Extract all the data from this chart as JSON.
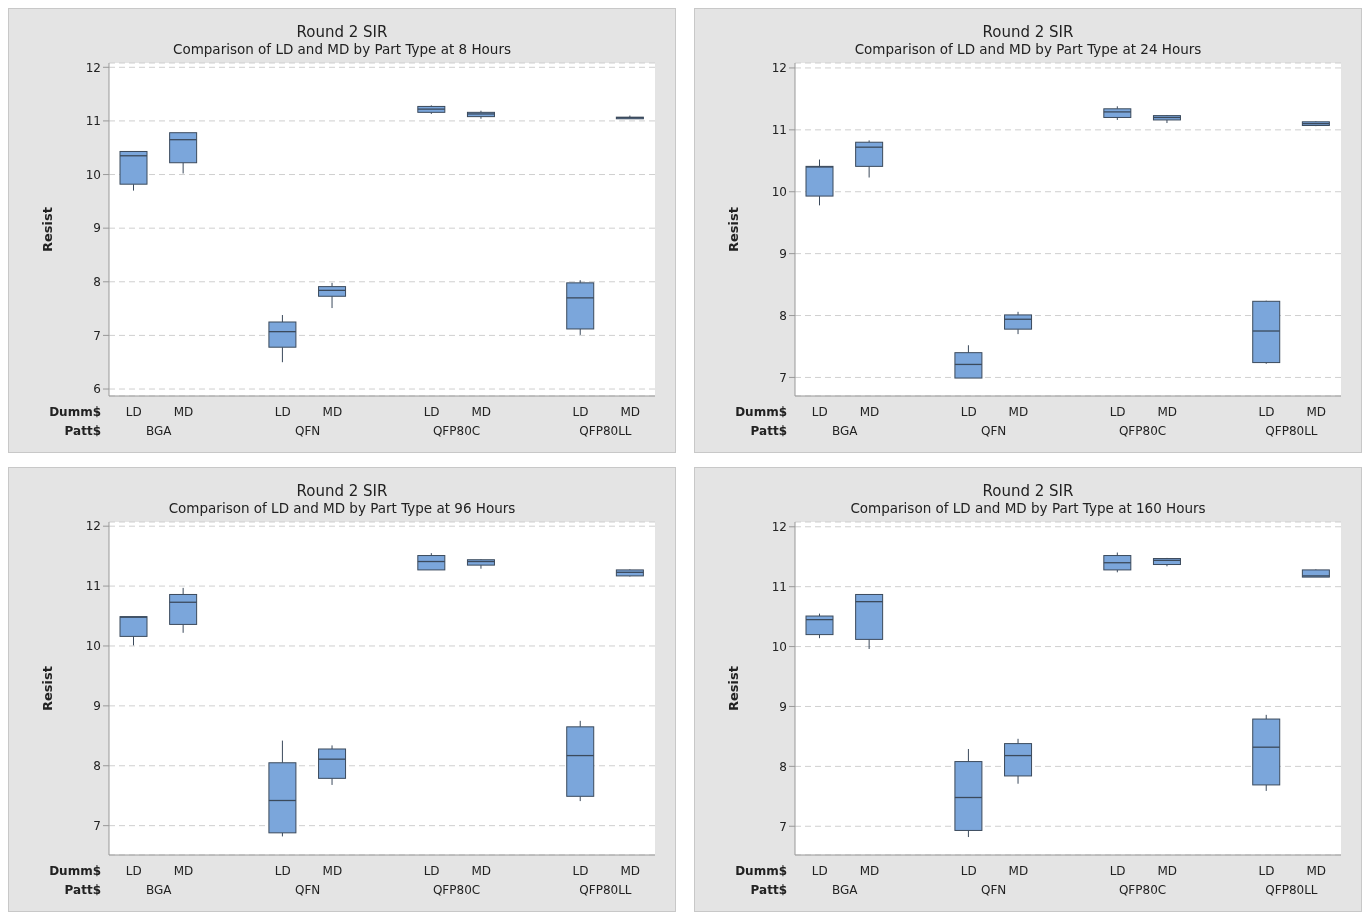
{
  "chart_data": [
    {
      "type": "box",
      "title": "Round 2 SIR",
      "subtitle": "Comparison of LD and MD by Part Type at 8 Hours",
      "ylabel": "Resist",
      "categories": [
        "LD",
        "MD",
        "LD",
        "MD",
        "LD",
        "MD",
        "LD",
        "MD"
      ],
      "annotations": [
        "Dumm$",
        "Patt$",
        "BGA",
        "QFN",
        "QFP80C",
        "QFP80LL"
      ],
      "color": "#7ba6db",
      "ylim": [
        5.87,
        12.08
      ],
      "yticks": [
        6,
        7,
        8,
        9,
        10,
        11,
        12
      ],
      "grid": "y",
      "boxes": [
        {
          "low": 9.7,
          "q1": 9.82,
          "median": 10.35,
          "q3": 10.43,
          "high": 10.43
        },
        {
          "low": 10.02,
          "q1": 10.22,
          "median": 10.65,
          "q3": 10.78,
          "high": 10.78
        },
        {
          "low": 6.5,
          "q1": 6.78,
          "median": 7.07,
          "q3": 7.25,
          "high": 7.38
        },
        {
          "low": 7.51,
          "q1": 7.73,
          "median": 7.84,
          "q3": 7.91,
          "high": 7.98
        },
        {
          "low": 11.13,
          "q1": 11.16,
          "median": 11.22,
          "q3": 11.27,
          "high": 11.29
        },
        {
          "low": 11.04,
          "q1": 11.08,
          "median": 11.13,
          "q3": 11.16,
          "high": 11.19
        },
        {
          "low": 7.01,
          "q1": 7.12,
          "median": 7.7,
          "q3": 7.98,
          "high": 8.03
        },
        {
          "low": 11.04,
          "q1": 11.04,
          "median": 11.06,
          "q3": 11.07,
          "high": 11.1
        }
      ]
    },
    {
      "type": "box",
      "title": "Round 2 SIR",
      "subtitle": "Comparison of LD and MD by Part Type at 24 Hours",
      "ylabel": "Resist",
      "categories": [
        "LD",
        "MD",
        "LD",
        "MD",
        "LD",
        "MD",
        "LD",
        "MD"
      ],
      "annotations": [
        "Dumm$",
        "Patt$",
        "BGA",
        "QFN",
        "QFP80C",
        "QFP80LL"
      ],
      "color": "#7ba6db",
      "ylim": [
        6.7,
        12.08
      ],
      "yticks": [
        7,
        8,
        9,
        10,
        11,
        12
      ],
      "grid": "y",
      "boxes": [
        {
          "low": 9.78,
          "q1": 9.93,
          "median": 10.4,
          "q3": 10.41,
          "high": 10.52
        },
        {
          "low": 10.23,
          "q1": 10.41,
          "median": 10.72,
          "q3": 10.8,
          "high": 10.83
        },
        {
          "low": 6.99,
          "q1": 6.99,
          "median": 7.21,
          "q3": 7.4,
          "high": 7.52
        },
        {
          "low": 7.7,
          "q1": 7.78,
          "median": 7.94,
          "q3": 8.01,
          "high": 8.06
        },
        {
          "low": 11.16,
          "q1": 11.2,
          "median": 11.29,
          "q3": 11.34,
          "high": 11.38
        },
        {
          "low": 11.11,
          "q1": 11.16,
          "median": 11.2,
          "q3": 11.23,
          "high": 11.24
        },
        {
          "low": 7.22,
          "q1": 7.24,
          "median": 7.75,
          "q3": 8.23,
          "high": 8.24
        },
        {
          "low": 11.06,
          "q1": 11.07,
          "median": 11.1,
          "q3": 11.13,
          "high": 11.14
        }
      ]
    },
    {
      "type": "box",
      "title": "Round 2 SIR",
      "subtitle": "Comparison of LD and MD by Part Type at 96 Hours",
      "ylabel": "Resist",
      "categories": [
        "LD",
        "MD",
        "LD",
        "MD",
        "LD",
        "MD",
        "LD",
        "MD"
      ],
      "annotations": [
        "Dumm$",
        "Patt$",
        "BGA",
        "QFN",
        "QFP80C",
        "QFP80LL"
      ],
      "color": "#7ba6db",
      "ylim": [
        6.51,
        12.07
      ],
      "yticks": [
        7,
        8,
        9,
        10,
        11,
        12
      ],
      "grid": "y",
      "boxes": [
        {
          "low": 10.01,
          "q1": 10.16,
          "median": 10.48,
          "q3": 10.49,
          "high": 10.49
        },
        {
          "low": 10.22,
          "q1": 10.36,
          "median": 10.73,
          "q3": 10.86,
          "high": 10.97
        },
        {
          "low": 6.82,
          "q1": 6.88,
          "median": 7.42,
          "q3": 8.05,
          "high": 8.42
        },
        {
          "low": 7.68,
          "q1": 7.79,
          "median": 8.11,
          "q3": 8.28,
          "high": 8.34
        },
        {
          "low": 11.27,
          "q1": 11.27,
          "median": 11.41,
          "q3": 11.51,
          "high": 11.55
        },
        {
          "low": 11.29,
          "q1": 11.35,
          "median": 11.41,
          "q3": 11.44,
          "high": 11.45
        },
        {
          "low": 7.41,
          "q1": 7.49,
          "median": 8.17,
          "q3": 8.65,
          "high": 8.75
        },
        {
          "low": 11.16,
          "q1": 11.17,
          "median": 11.23,
          "q3": 11.27,
          "high": 11.28
        }
      ]
    },
    {
      "type": "box",
      "title": "Round 2 SIR",
      "subtitle": "Comparison of LD and MD by Part Type at 160 Hours",
      "ylabel": "Resist",
      "categories": [
        "LD",
        "MD",
        "LD",
        "MD",
        "LD",
        "MD",
        "LD",
        "MD"
      ],
      "annotations": [
        "Dumm$",
        "Patt$",
        "BGA",
        "QFN",
        "QFP80C",
        "QFP80LL"
      ],
      "color": "#7ba6db",
      "ylim": [
        6.52,
        12.08
      ],
      "yticks": [
        7,
        8,
        9,
        10,
        11,
        12
      ],
      "grid": "y",
      "boxes": [
        {
          "low": 10.14,
          "q1": 10.2,
          "median": 10.45,
          "q3": 10.51,
          "high": 10.55
        },
        {
          "low": 9.96,
          "q1": 10.12,
          "median": 10.75,
          "q3": 10.87,
          "high": 10.87
        },
        {
          "low": 6.82,
          "q1": 6.93,
          "median": 7.48,
          "q3": 8.08,
          "high": 8.29
        },
        {
          "low": 7.71,
          "q1": 7.84,
          "median": 8.18,
          "q3": 8.38,
          "high": 8.46
        },
        {
          "low": 11.24,
          "q1": 11.28,
          "median": 11.4,
          "q3": 11.52,
          "high": 11.57
        },
        {
          "low": 11.34,
          "q1": 11.37,
          "median": 11.44,
          "q3": 11.47,
          "high": 11.48
        },
        {
          "low": 7.59,
          "q1": 7.69,
          "median": 8.32,
          "q3": 8.79,
          "high": 8.86
        },
        {
          "low": 11.16,
          "q1": 11.16,
          "median": 11.18,
          "q3": 11.28,
          "high": 11.29
        }
      ]
    }
  ]
}
